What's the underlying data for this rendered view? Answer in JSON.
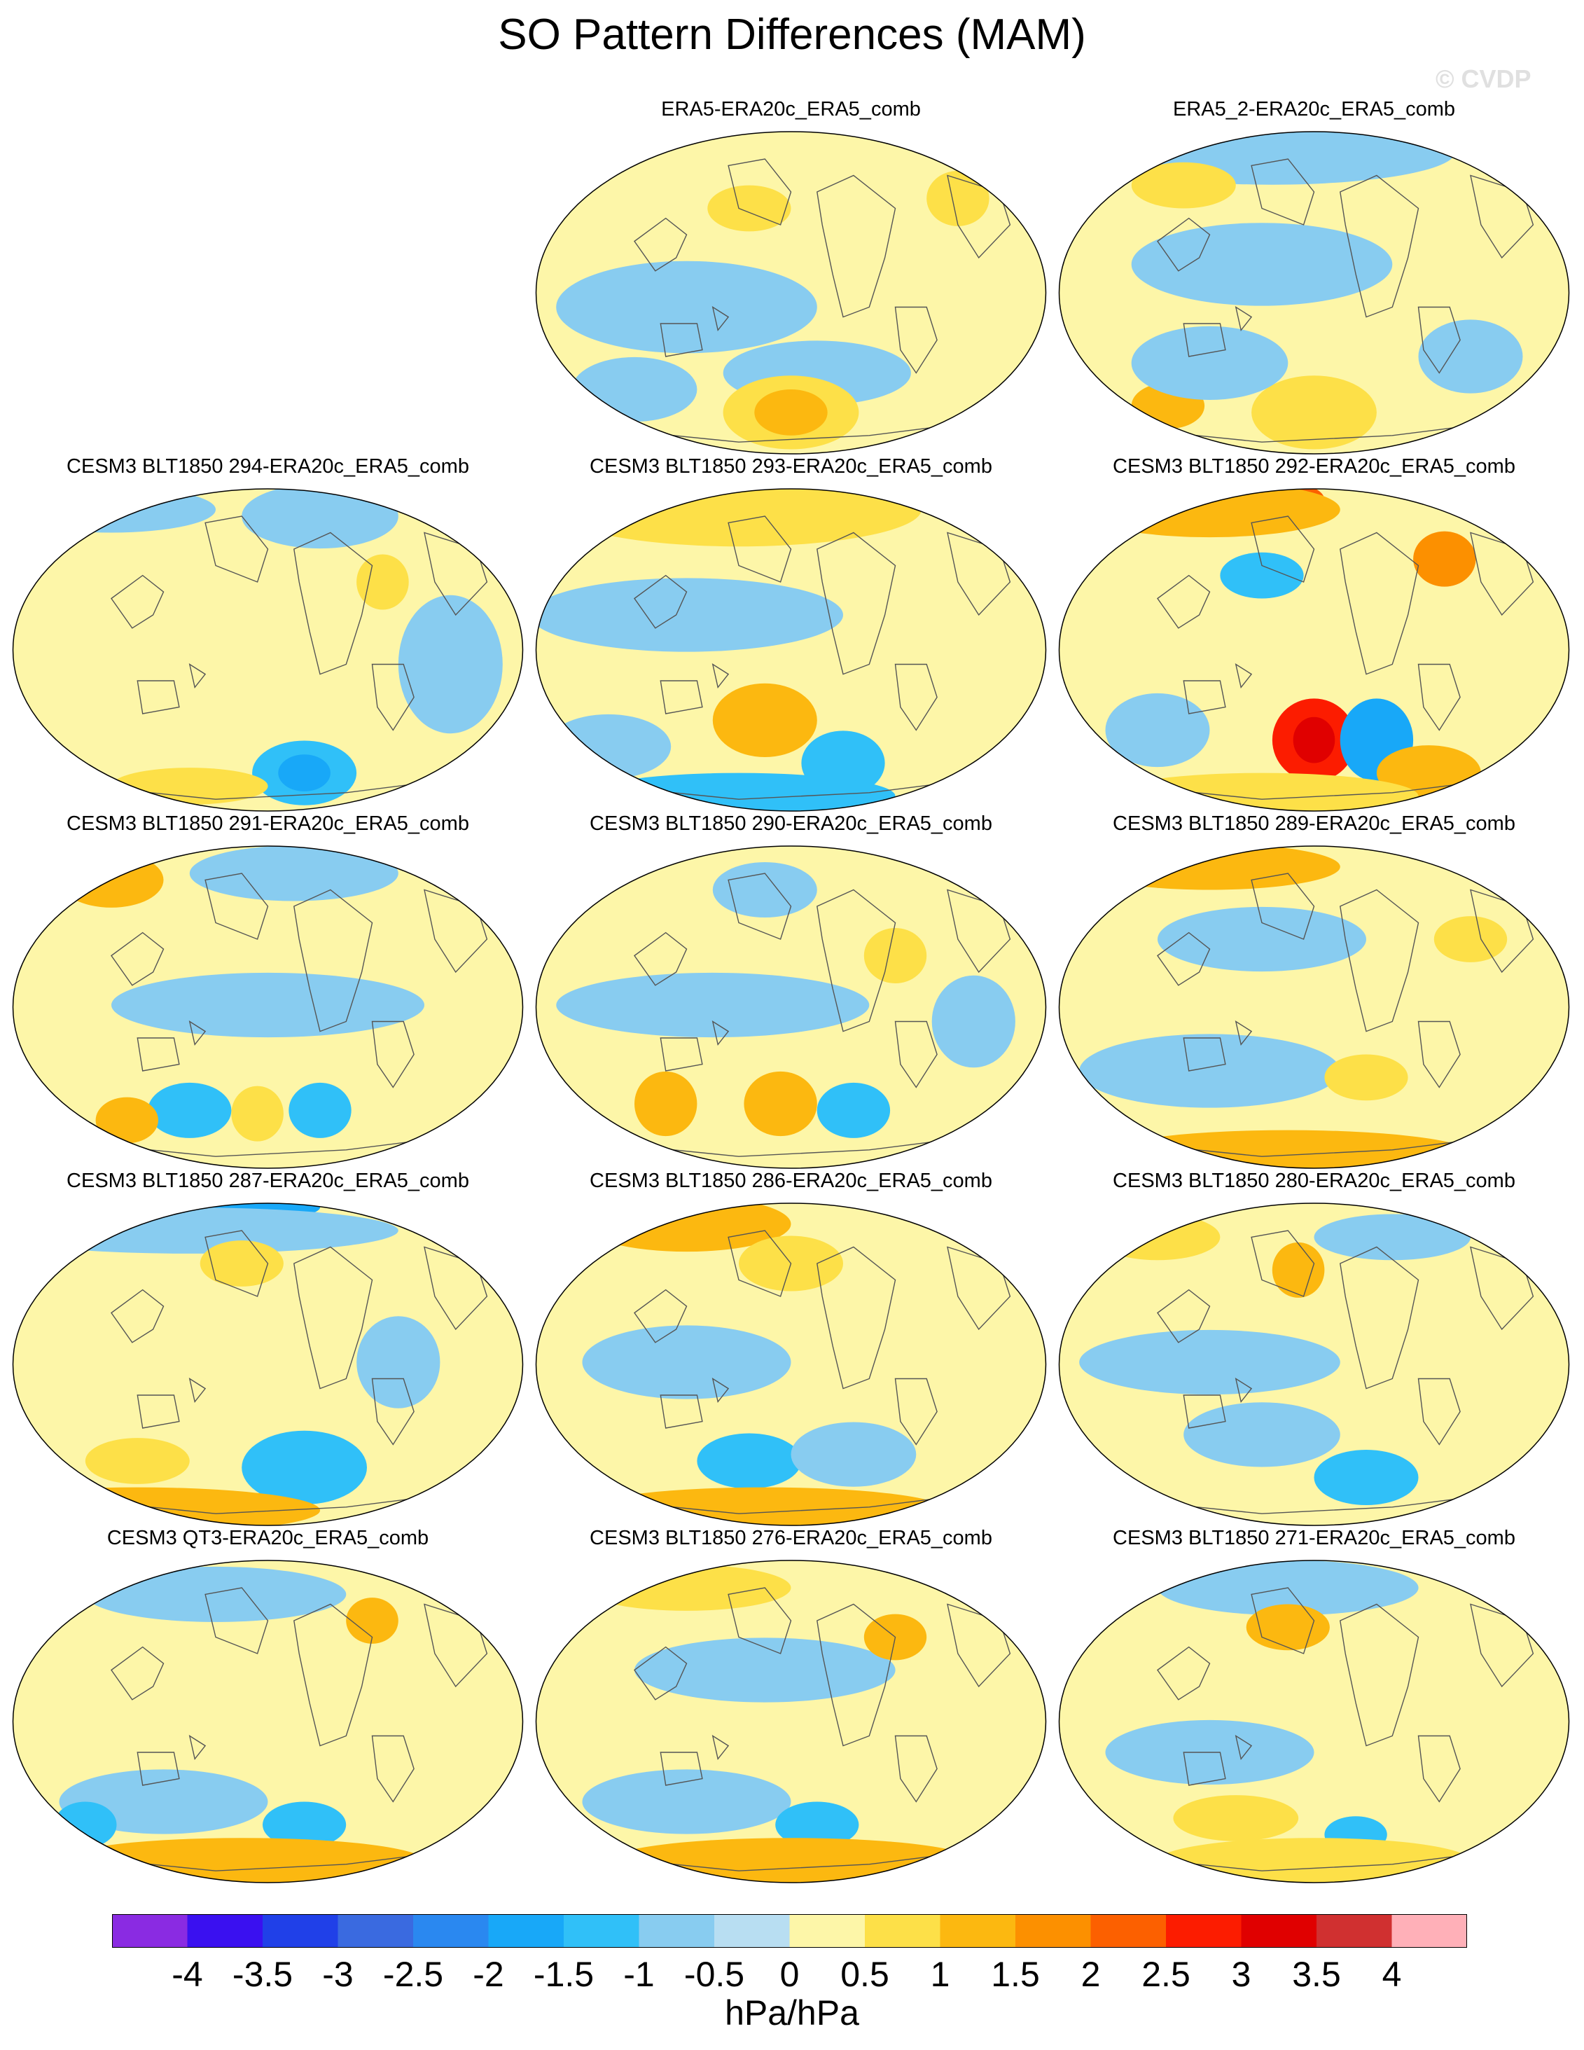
{
  "title": "SO Pattern Differences (MAM)",
  "watermark": "© CVDP",
  "panels": [
    {
      "label": "ERA5-ERA20c_ERA5_comb",
      "variant": 0
    },
    {
      "label": "ERA5_2-ERA20c_ERA5_comb",
      "variant": 1
    },
    {
      "label": "CESM3 BLT1850 294-ERA20c_ERA5_comb",
      "variant": 2
    },
    {
      "label": "CESM3 BLT1850 293-ERA20c_ERA5_comb",
      "variant": 3
    },
    {
      "label": "CESM3 BLT1850 292-ERA20c_ERA5_comb",
      "variant": 4
    },
    {
      "label": "CESM3 BLT1850 291-ERA20c_ERA5_comb",
      "variant": 5
    },
    {
      "label": "CESM3 BLT1850 290-ERA20c_ERA5_comb",
      "variant": 6
    },
    {
      "label": "CESM3 BLT1850 289-ERA20c_ERA5_comb",
      "variant": 7
    },
    {
      "label": "CESM3 BLT1850 287-ERA20c_ERA5_comb",
      "variant": 8
    },
    {
      "label": "CESM3 BLT1850 286-ERA20c_ERA5_comb",
      "variant": 9
    },
    {
      "label": "CESM3 BLT1850 280-ERA20c_ERA5_comb",
      "variant": 10
    },
    {
      "label": "CESM3 QT3-ERA20c_ERA5_comb",
      "variant": 11
    },
    {
      "label": "CESM3 BLT1850 276-ERA20c_ERA5_comb",
      "variant": 12
    },
    {
      "label": "CESM3 BLT1850 271-ERA20c_ERA5_comb",
      "variant": 13
    }
  ],
  "colorbar": {
    "colors": [
      "#8a2be2",
      "#3a10f0",
      "#2040e8",
      "#3a6ae0",
      "#2a88f0",
      "#18a8f8",
      "#30c0f8",
      "#88ccf0",
      "#b8def2",
      "#fdf6a8",
      "#fde048",
      "#fcb810",
      "#fc9000",
      "#fc6000",
      "#fc1c00",
      "#e00000",
      "#d03030",
      "#ffb0b8"
    ],
    "labels": [
      "-4",
      "-3.5",
      "-3",
      "-2.5",
      "-2",
      "-1.5",
      "-1",
      "-0.5",
      "0",
      "0.5",
      "1",
      "1.5",
      "2",
      "2.5",
      "3",
      "3.5",
      "4"
    ],
    "units": "hPa/hPa"
  }
}
